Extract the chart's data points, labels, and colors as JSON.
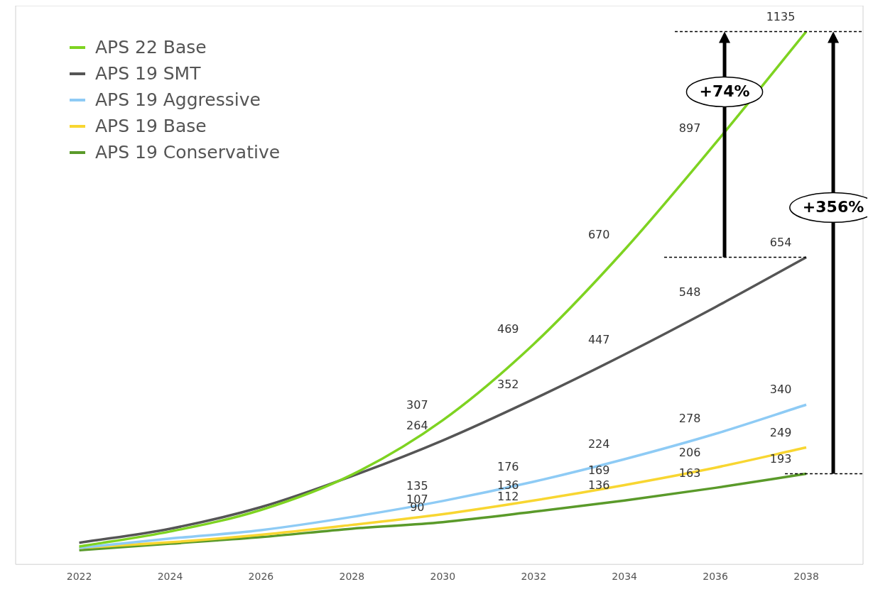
{
  "chart_data": {
    "type": "line",
    "x": [
      2022,
      2024,
      2026,
      2028,
      2030,
      2032,
      2034,
      2036,
      2038
    ],
    "xlim": [
      2020.6,
      2039.25
    ],
    "xticks": [
      2022,
      2024,
      2026,
      2028,
      2030,
      2032,
      2034,
      2036,
      2038
    ],
    "ylim": [
      0,
      1190
    ],
    "grid": false,
    "legend": "top left",
    "marker": "none",
    "line_style": "solid",
    "tick_labels": "x",
    "series": [
      {
        "name": "APS 22 Base",
        "color": "#7ed321",
        "values": [
          38,
          70,
          116,
          191,
          307,
          469,
          670,
          897,
          1135
        ],
        "value_labels": [
          null,
          null,
          null,
          null,
          "307",
          "469",
          "670",
          "897",
          "1135"
        ]
      },
      {
        "name": "APS 19 SMT",
        "color": "#555555",
        "values": [
          46,
          76,
          122,
          188,
          264,
          352,
          447,
          548,
          654
        ],
        "value_labels": [
          null,
          null,
          null,
          null,
          "264",
          "352",
          "447",
          "548",
          "654"
        ]
      },
      {
        "name": "APS 19 Aggressive",
        "color": "#8ecbf5",
        "values": [
          35,
          55,
          73,
          101,
          135,
          176,
          224,
          278,
          340
        ],
        "value_labels": [
          null,
          null,
          null,
          null,
          "135",
          "176",
          "224",
          "278",
          "340"
        ]
      },
      {
        "name": "APS 19 Base",
        "color": "#f8d631",
        "values": [
          35,
          47,
          63,
          84,
          107,
          136,
          169,
          206,
          249
        ],
        "value_labels": [
          null,
          null,
          null,
          null,
          "107",
          "136",
          "169",
          "206",
          "249"
        ]
      },
      {
        "name": "APS 19 Conservative",
        "color": "#5a9a2a",
        "values": [
          30,
          44,
          58,
          76,
          90,
          112,
          136,
          163,
          193
        ],
        "value_labels": [
          null,
          null,
          null,
          null,
          "90",
          "112",
          "136",
          "163",
          "193"
        ]
      }
    ],
    "ref_lines": [
      {
        "axis": "y",
        "value": 1135,
        "color": "#000000",
        "line_style": "dashed"
      },
      {
        "axis": "y",
        "value": 654,
        "color": "#000000",
        "line_style": "dashed"
      },
      {
        "axis": "y",
        "value": 193,
        "color": "#000000",
        "line_style": "dashed"
      }
    ],
    "annotations": [
      "+74%",
      "+356%"
    ]
  }
}
